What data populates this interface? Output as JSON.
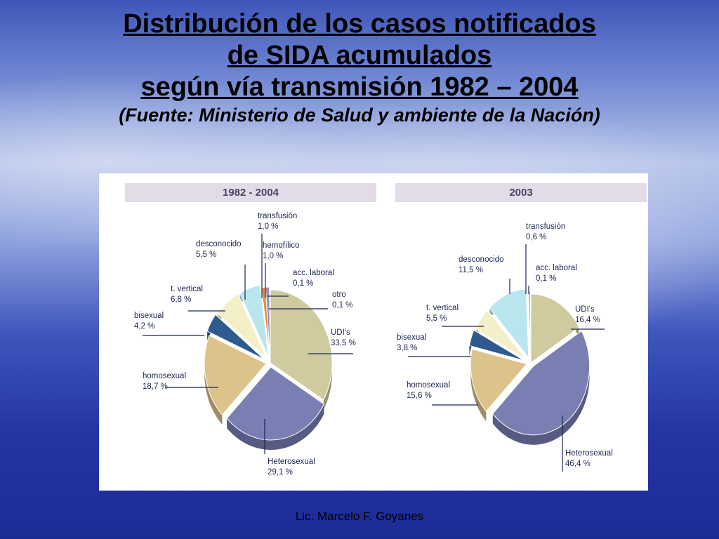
{
  "slide": {
    "title_lines": [
      "Distribución de los casos notificados",
      "de SIDA acumulados",
      "según vía transmisión 1982 – 2004"
    ],
    "subtitle": "(Fuente: Ministerio de Salud y ambiente de la Nación)",
    "footer": "Lic. Marcelo F. Goyanes"
  },
  "chart_data": [
    {
      "type": "pie",
      "title": "1982  -  2004",
      "slices": [
        {
          "name": "UDI's",
          "value": 33.5,
          "label": "33,5 %",
          "color": "#cfcb9f"
        },
        {
          "name": "Heterosexual",
          "value": 29.1,
          "label": "29,1 %",
          "color": "#7a7fb3"
        },
        {
          "name": "homosexual",
          "value": 18.7,
          "label": "18,7 %",
          "color": "#dcc38b"
        },
        {
          "name": "bisexual",
          "value": 4.2,
          "label": "4,2 %",
          "color": "#2e5a8e"
        },
        {
          "name": "t. vertical",
          "value": 6.8,
          "label": "6,8 %",
          "color": "#f3efc6"
        },
        {
          "name": "desconocido",
          "value": 5.5,
          "label": "5,5 %",
          "color": "#b9e6ee"
        },
        {
          "name": "transfusión",
          "value": 1.0,
          "label": "1,0 %",
          "color": "#ef8c30"
        },
        {
          "name": "hemofílico",
          "value": 1.0,
          "label": "1,0 %",
          "color": "#9a8fb7"
        },
        {
          "name": "acc. laboral",
          "value": 0.1,
          "label": "0,1 %",
          "color": "#e8c6d8"
        },
        {
          "name": "otro",
          "value": 0.1,
          "label": "0,1 %",
          "color": "#d9d9d9"
        }
      ]
    },
    {
      "type": "pie",
      "title": "2003",
      "slices": [
        {
          "name": "UDI's",
          "value": 16.4,
          "label": "16,4 %",
          "color": "#cfcb9f"
        },
        {
          "name": "Heterosexual",
          "value": 46.4,
          "label": "46,4 %",
          "color": "#7a7fb3"
        },
        {
          "name": "homosexual",
          "value": 15.6,
          "label": "15,6 %",
          "color": "#dcc38b"
        },
        {
          "name": "bisexual",
          "value": 3.8,
          "label": "3,8 %",
          "color": "#2e5a8e"
        },
        {
          "name": "t. vertical",
          "value": 5.5,
          "label": "5,5 %",
          "color": "#f3efc6"
        },
        {
          "name": "desconocido",
          "value": 11.5,
          "label": "11,5 %",
          "color": "#b9e6ee"
        },
        {
          "name": "transfusión",
          "value": 0.6,
          "label": "0,6 %",
          "color": "#cfa6be"
        },
        {
          "name": "acc. laboral",
          "value": 0.1,
          "label": "0,1 %",
          "color": "#d9d9d9"
        }
      ]
    }
  ]
}
